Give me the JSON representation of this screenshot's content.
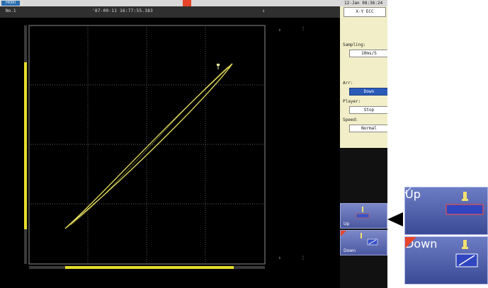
{
  "header": {
    "logo": "HIOKI",
    "datetime": "12-Jan 08:36:24"
  },
  "plot": {
    "channel_label": "No.1",
    "trigger_time": "'87-09-11 16:77:55.383",
    "trigger_mark": "⇓"
  },
  "panel": {
    "mode": "X-Y ECC",
    "sampling_label": "Sampling:",
    "sampling_value": "10ms/S",
    "arrow_label": "Arr:",
    "arrow_value": "Down",
    "player_label": "Player:",
    "player_value": "Stop",
    "speed_label": "Speed:",
    "speed_value": "Normal"
  },
  "buttons": {
    "up": "Up",
    "down": "Down"
  },
  "colors": {
    "trace": "#e8e060",
    "scale_bar": "#e6dd2a",
    "button_blue": "#5563ad",
    "selected": "#2a5bb8",
    "alarm": "#e8442a"
  }
}
